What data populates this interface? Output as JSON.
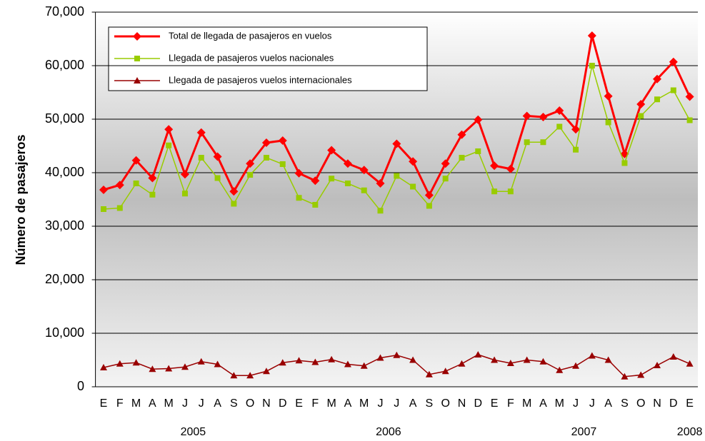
{
  "chart_data": {
    "type": "line",
    "y_label": "Número de pasajeros",
    "categories": [
      "E",
      "F",
      "M",
      "A",
      "M",
      "J",
      "J",
      "A",
      "S",
      "O",
      "N",
      "D",
      "E",
      "F",
      "M",
      "A",
      "M",
      "J",
      "J",
      "A",
      "S",
      "O",
      "N",
      "D",
      "E",
      "F",
      "M",
      "A",
      "M",
      "J",
      "J",
      "A",
      "S",
      "O",
      "N",
      "D",
      "E"
    ],
    "years": [
      "2005",
      "2006",
      "2007",
      "2008"
    ],
    "series": [
      {
        "name": "Total de llegada de pasajeros en vuelos",
        "color": "#ff0000",
        "marker": "diamond",
        "values": [
          36800,
          37700,
          42300,
          39000,
          48100,
          39700,
          47500,
          43000,
          36500,
          41700,
          45600,
          46000,
          39900,
          38500,
          44200,
          41700,
          40500,
          38000,
          45400,
          42100,
          35800,
          41700,
          47100,
          49900,
          41300,
          40700,
          50600,
          50400,
          51600,
          48100,
          65600,
          54300,
          43500,
          52800,
          57500,
          60700,
          54200
        ]
      },
      {
        "name": "Llegada de pasajeros vuelos nacionales",
        "color": "#99cc00",
        "marker": "square",
        "values": [
          33200,
          33400,
          38000,
          35900,
          45100,
          36100,
          42800,
          39000,
          34200,
          39600,
          42800,
          41600,
          35300,
          34000,
          38900,
          38000,
          36700,
          32900,
          39400,
          37400,
          33800,
          38900,
          42800,
          44000,
          36500,
          36500,
          45700,
          45700,
          48600,
          44300,
          60000,
          49400,
          41800,
          50600,
          53700,
          55400,
          49800
        ]
      },
      {
        "name": "Llegada de pasajeros vuelos internacionales",
        "color": "#990000",
        "marker": "triangle",
        "values": [
          3600,
          4300,
          4500,
          3300,
          3400,
          3700,
          4700,
          4200,
          2100,
          2100,
          2900,
          4500,
          4900,
          4600,
          5100,
          4200,
          3900,
          5400,
          5900,
          5000,
          2300,
          2900,
          4300,
          6000,
          5000,
          4400,
          5000,
          4700,
          3100,
          3900,
          5800,
          5000,
          1900,
          2200,
          4000,
          5600,
          4300
        ]
      }
    ],
    "ylim": [
      0,
      70000
    ],
    "yticks": [
      0,
      {
        "value": 10000,
        "label": "10,000"
      },
      {
        "value": 20000,
        "label": "20,000"
      },
      {
        "value": 30000,
        "label": "30,000"
      },
      {
        "value": 40000,
        "label": "40,000"
      },
      {
        "value": 50000,
        "label": "50,000"
      },
      {
        "value": 60000,
        "label": "60,000"
      },
      {
        "value": 70000,
        "label": "70,000"
      }
    ],
    "grid": true
  }
}
